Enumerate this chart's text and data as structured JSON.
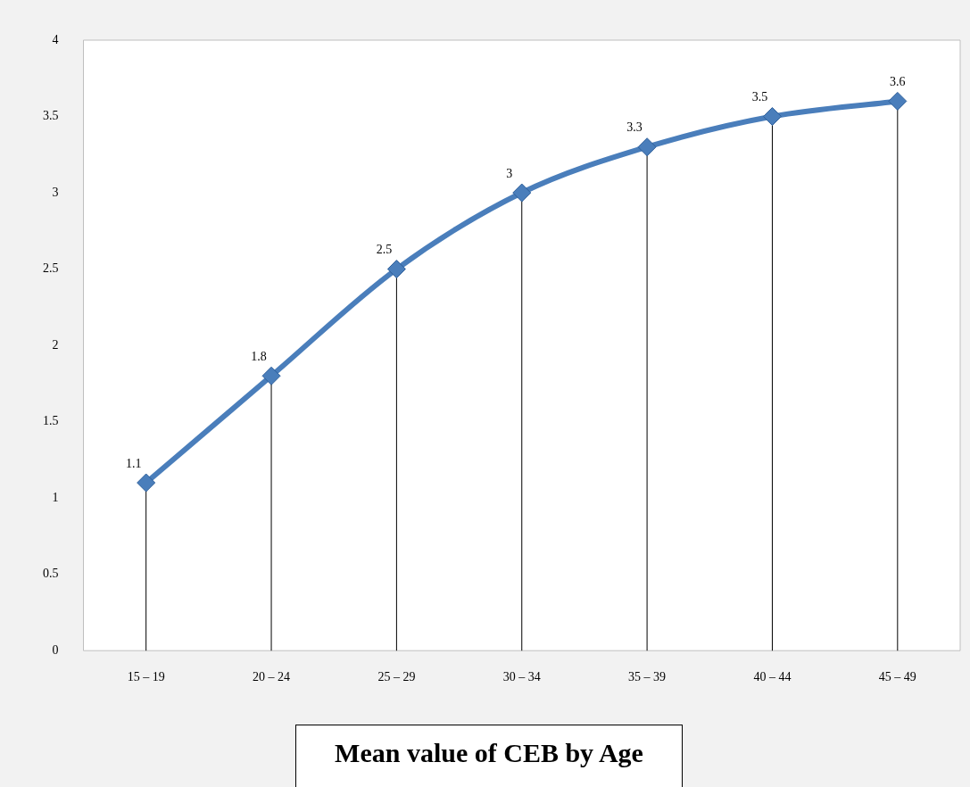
{
  "chart_data": {
    "type": "line",
    "title": "Mean value of CEB by Age",
    "categories": [
      "15 – 19",
      "20 – 24",
      "25 – 29",
      "30 – 34",
      "35 – 39",
      "40 – 44",
      "45 – 49"
    ],
    "values": [
      1.1,
      1.8,
      2.5,
      3,
      3.3,
      3.5,
      3.6
    ],
    "color": "#4a7ebb",
    "ylim": [
      0,
      4
    ],
    "yticks": [
      0,
      0.5,
      1,
      1.5,
      2,
      2.5,
      3,
      3.5,
      4
    ],
    "data_labels": true,
    "grid": "x",
    "marker": "diamond",
    "line_style": "solid"
  }
}
